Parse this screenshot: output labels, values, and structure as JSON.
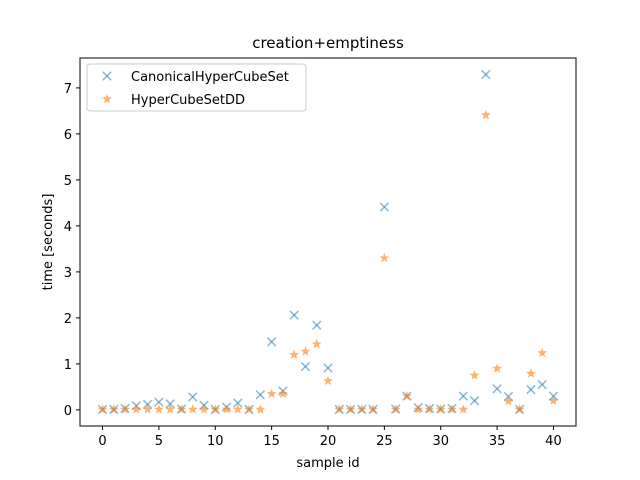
{
  "chart_data": {
    "type": "scatter",
    "title": "creation+emptiness",
    "xlabel": "sample id",
    "ylabel": "time [seconds]",
    "xlim": [
      -2,
      42
    ],
    "ylim": [
      -0.35,
      7.65
    ],
    "xticks": [
      0,
      5,
      10,
      15,
      20,
      25,
      30,
      35,
      40
    ],
    "yticks": [
      0,
      1,
      2,
      3,
      4,
      5,
      6,
      7
    ],
    "grid": false,
    "legend_position": "upper-left",
    "series": [
      {
        "name": "CanonicalHyperCubeSet",
        "marker": "x",
        "color": "#1f77b4",
        "x": [
          0,
          1,
          2,
          3,
          4,
          5,
          6,
          7,
          8,
          9,
          10,
          11,
          12,
          13,
          14,
          15,
          16,
          17,
          18,
          19,
          20,
          21,
          22,
          23,
          24,
          25,
          26,
          27,
          28,
          29,
          30,
          31,
          32,
          33,
          34,
          35,
          36,
          37,
          38,
          39,
          40
        ],
        "y": [
          0.01,
          0.01,
          0.03,
          0.09,
          0.12,
          0.17,
          0.13,
          0.02,
          0.28,
          0.1,
          0.01,
          0.06,
          0.15,
          0.01,
          0.33,
          1.48,
          0.41,
          2.06,
          0.94,
          1.84,
          0.91,
          0.01,
          0.01,
          0.01,
          0.01,
          4.41,
          0.02,
          0.3,
          0.05,
          0.03,
          0.02,
          0.03,
          0.3,
          0.2,
          7.29,
          0.46,
          0.29,
          0.01,
          0.44,
          0.55,
          0.3
        ]
      },
      {
        "name": "HyperCubeSetDD",
        "marker": "star",
        "color": "#ff7f0e",
        "x": [
          0,
          1,
          2,
          3,
          4,
          5,
          6,
          7,
          8,
          9,
          10,
          11,
          12,
          13,
          14,
          15,
          16,
          17,
          18,
          19,
          20,
          21,
          22,
          23,
          24,
          25,
          26,
          27,
          28,
          29,
          30,
          31,
          32,
          33,
          34,
          35,
          36,
          37,
          38,
          39,
          40
        ],
        "y": [
          0.01,
          0.01,
          0.01,
          0.01,
          0.01,
          0.01,
          0.01,
          0.01,
          0.01,
          0.01,
          0.01,
          0.01,
          0.01,
          0.01,
          0.01,
          0.35,
          0.35,
          1.2,
          1.27,
          1.43,
          0.63,
          0.01,
          0.01,
          0.01,
          0.01,
          3.3,
          0.01,
          0.3,
          0.01,
          0.01,
          0.01,
          0.01,
          0.01,
          0.75,
          6.41,
          0.9,
          0.19,
          0.01,
          0.79,
          1.24,
          0.2
        ]
      }
    ]
  }
}
